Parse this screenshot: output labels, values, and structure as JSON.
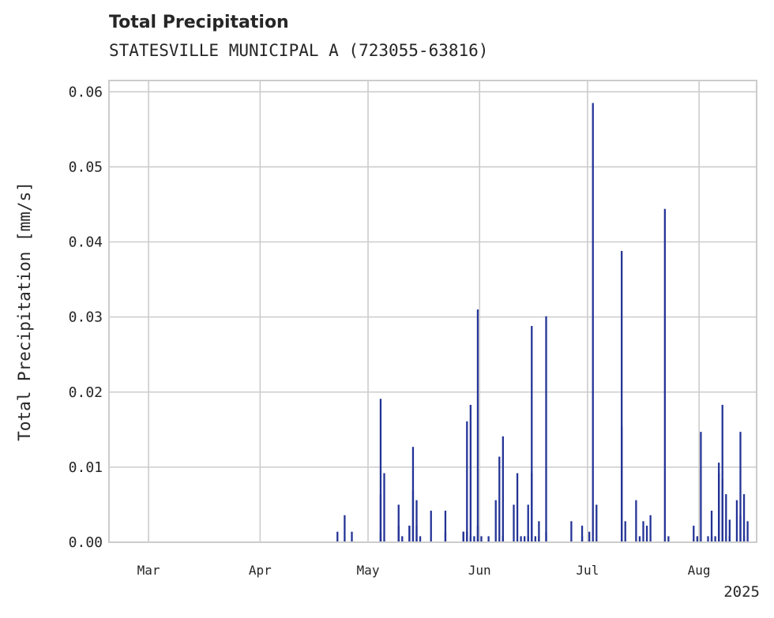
{
  "chart_data": {
    "type": "bar",
    "title": "Total Precipitation",
    "subtitle": "STATESVILLE MUNICIPAL A (723055-63816)",
    "xlabel": "",
    "ylabel": "Total Precipitation [mm/s]",
    "x_start": "2025-02-18",
    "x_end": "2025-08-17",
    "ylim": [
      0,
      0.0615
    ],
    "grid": true,
    "legend": "none",
    "color": "#233396",
    "x_ticks": [
      {
        "date": "2025-03-01",
        "label": "Mar"
      },
      {
        "date": "2025-04-01",
        "label": "Apr"
      },
      {
        "date": "2025-05-01",
        "label": "May"
      },
      {
        "date": "2025-06-01",
        "label": "Jun"
      },
      {
        "date": "2025-07-01",
        "label": "Jul"
      },
      {
        "date": "2025-08-01",
        "label": "Aug"
      }
    ],
    "x_year_label": "2025",
    "y_ticks": [
      {
        "value": 0.0,
        "label": "0.00"
      },
      {
        "value": 0.01,
        "label": "0.01"
      },
      {
        "value": 0.02,
        "label": "0.02"
      },
      {
        "value": 0.03,
        "label": "0.03"
      },
      {
        "value": 0.04,
        "label": "0.04"
      },
      {
        "value": 0.05,
        "label": "0.05"
      },
      {
        "value": 0.06,
        "label": "0.06"
      }
    ],
    "series": [
      {
        "name": "",
        "points": [
          [
            "2025-04-22",
            0.0014
          ],
          [
            "2025-04-24",
            0.0036
          ],
          [
            "2025-04-26",
            0.0014
          ],
          [
            "2025-05-04",
            0.0064
          ],
          [
            "2025-05-04",
            0.0014
          ],
          [
            "2025-05-04",
            0.0191
          ],
          [
            "2025-05-05",
            0.0092
          ],
          [
            "2025-05-09",
            0.0022
          ],
          [
            "2025-05-09",
            0.005
          ],
          [
            "2025-05-10",
            0.0008
          ],
          [
            "2025-05-12",
            0.0022
          ],
          [
            "2025-05-12",
            0.0022
          ],
          [
            "2025-05-13",
            0.0127
          ],
          [
            "2025-05-13",
            0.0069
          ],
          [
            "2025-05-14",
            0.0056
          ],
          [
            "2025-05-14",
            0.0022
          ],
          [
            "2025-05-15",
            0.0008
          ],
          [
            "2025-05-18",
            0.0042
          ],
          [
            "2025-05-22",
            0.0014
          ],
          [
            "2025-05-22",
            0.0042
          ],
          [
            "2025-05-27",
            0.0014
          ],
          [
            "2025-05-27",
            0.0014
          ],
          [
            "2025-05-28",
            0.0161
          ],
          [
            "2025-05-28",
            0.0014
          ],
          [
            "2025-05-29",
            0.0183
          ],
          [
            "2025-05-29",
            0.0008
          ],
          [
            "2025-05-30",
            0.0008
          ],
          [
            "2025-05-31",
            0.031
          ],
          [
            "2025-05-31",
            0.0022
          ],
          [
            "2025-06-01",
            0.0008
          ],
          [
            "2025-06-03",
            0.0008
          ],
          [
            "2025-06-05",
            0.0056
          ],
          [
            "2025-06-06",
            0.0114
          ],
          [
            "2025-06-07",
            0.0141
          ],
          [
            "2025-06-07",
            0.0008
          ],
          [
            "2025-06-10",
            0.005
          ],
          [
            "2025-06-11",
            0.0092
          ],
          [
            "2025-06-12",
            0.0008
          ],
          [
            "2025-06-13",
            0.0008
          ],
          [
            "2025-06-14",
            0.0008
          ],
          [
            "2025-06-14",
            0.005
          ],
          [
            "2025-06-15",
            0.0092
          ],
          [
            "2025-06-15",
            0.0288
          ],
          [
            "2025-06-16",
            0.0008
          ],
          [
            "2025-06-17",
            0.0028
          ],
          [
            "2025-06-17",
            0.0008
          ],
          [
            "2025-06-19",
            0.0301
          ],
          [
            "2025-06-19",
            0.0014
          ],
          [
            "2025-06-26",
            0.0028
          ],
          [
            "2025-06-29",
            0.0022
          ],
          [
            "2025-06-29",
            0.0008
          ],
          [
            "2025-07-01",
            0.0014
          ],
          [
            "2025-07-02",
            0.0585
          ],
          [
            "2025-07-03",
            0.005
          ],
          [
            "2025-07-10",
            0.0388
          ],
          [
            "2025-07-10",
            0.0154
          ],
          [
            "2025-07-11",
            0.0028
          ],
          [
            "2025-07-14",
            0.0056
          ],
          [
            "2025-07-15",
            0.0008
          ],
          [
            "2025-07-16",
            0.0028
          ],
          [
            "2025-07-17",
            0.0022
          ],
          [
            "2025-07-18",
            0.0036
          ],
          [
            "2025-07-22",
            0.0444
          ],
          [
            "2025-07-23",
            0.0008
          ],
          [
            "2025-07-30",
            0.0022
          ],
          [
            "2025-07-31",
            0.0008
          ],
          [
            "2025-08-01",
            0.0147
          ],
          [
            "2025-08-03",
            0.0008
          ],
          [
            "2025-08-04",
            0.0042
          ],
          [
            "2025-08-04",
            0.0008
          ],
          [
            "2025-08-05",
            0.0008
          ],
          [
            "2025-08-06",
            0.0106
          ],
          [
            "2025-08-06",
            0.0092
          ],
          [
            "2025-08-07",
            0.0183
          ],
          [
            "2025-08-07",
            0.0064
          ],
          [
            "2025-08-07",
            0.0084
          ],
          [
            "2025-08-08",
            0.0064
          ],
          [
            "2025-08-09",
            0.003
          ],
          [
            "2025-08-09",
            0.0008
          ],
          [
            "2025-08-11",
            0.0056
          ],
          [
            "2025-08-12",
            0.0036
          ],
          [
            "2025-08-12",
            0.0147
          ],
          [
            "2025-08-13",
            0.0064
          ],
          [
            "2025-08-13",
            0.0008
          ],
          [
            "2025-08-14",
            0.0028
          ]
        ]
      }
    ]
  }
}
